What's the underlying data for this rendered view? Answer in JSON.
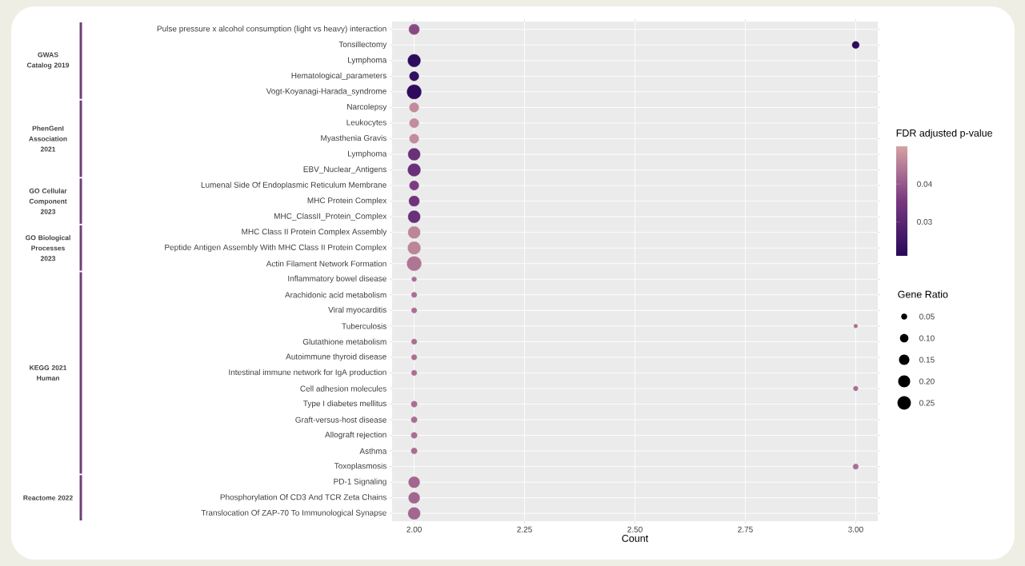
{
  "chart_data": {
    "type": "bubble",
    "orientation": "horizontal",
    "xlabel": "Count",
    "clabel": "FDR adjusted p-value",
    "legend_title": "Gene Ratio",
    "categories": [
      "Pulse pressure x alcohol consumption (light vs heavy) interaction",
      "Tonsillectomy",
      "Lymphoma",
      "Hematological_parameters",
      "Vogt-Koyanagi-Harada_syndrome",
      "Narcolepsy",
      "Leukocytes",
      "Myasthenia Gravis",
      "Lymphoma",
      "EBV_Nuclear_Antigens",
      "Lumenal Side Of Endoplasmic Reticulum Membrane",
      "MHC Protein Complex",
      "MHC_ClassII_Protein_Complex",
      "MHC Class II Protein Complex Assembly",
      "Peptide Antigen Assembly With MHC Class II Protein Complex",
      "Actin Filament Network Formation",
      "Inflammatory bowel disease",
      "Arachidonic acid metabolism",
      "Viral myocarditis",
      "Tuberculosis",
      "Glutathione metabolism",
      "Autoimmune thyroid disease",
      "Intestinal immune network for IgA production",
      "Cell adhesion molecules",
      "Type I diabetes mellitus",
      "Graft-versus-host disease",
      "Allograft rejection",
      "Asthma",
      "Toxoplasmosis",
      "PD-1 Signaling",
      "Phosphorylation Of CD3 And TCR Zeta Chains",
      "Translocation Of ZAP-70 To Immunological Synapse"
    ],
    "values": [
      2,
      3,
      2,
      2,
      2,
      2,
      2,
      2,
      2,
      2,
      2,
      2,
      2,
      2,
      2,
      2,
      2,
      2,
      2,
      3,
      2,
      2,
      2,
      3,
      2,
      2,
      2,
      2,
      3,
      2,
      2,
      2
    ],
    "sizes": [
      0.15,
      0.07,
      0.22,
      0.12,
      0.28,
      0.12,
      0.12,
      0.12,
      0.2,
      0.22,
      0.12,
      0.15,
      0.2,
      0.2,
      0.22,
      0.28,
      0.03,
      0.04,
      0.04,
      0.02,
      0.04,
      0.04,
      0.04,
      0.03,
      0.05,
      0.05,
      0.05,
      0.05,
      0.04,
      0.17,
      0.17,
      0.2
    ],
    "cvalues": [
      0.038,
      0.022,
      0.022,
      0.023,
      0.022,
      0.047,
      0.047,
      0.047,
      0.033,
      0.033,
      0.036,
      0.034,
      0.033,
      0.046,
      0.046,
      0.044,
      0.043,
      0.043,
      0.043,
      0.043,
      0.043,
      0.043,
      0.043,
      0.043,
      0.043,
      0.043,
      0.043,
      0.043,
      0.043,
      0.042,
      0.042,
      0.042
    ],
    "xlim": [
      1.95,
      3.05
    ],
    "xticks": [
      {
        "value": 2,
        "label": "2.00"
      },
      {
        "value": 2.25,
        "label": "2.25"
      },
      {
        "value": 2.5,
        "label": "2.50"
      },
      {
        "value": 2.75,
        "label": "2.75"
      },
      {
        "value": 3,
        "label": "3.00"
      }
    ],
    "clim": [
      0.021,
      0.05
    ],
    "cticks": [
      0.03,
      0.04
    ],
    "size_legend": [
      {
        "value": 0.05,
        "label": "0.05"
      },
      {
        "value": 0.1,
        "label": "0.10"
      },
      {
        "value": 0.15,
        "label": "0.15"
      },
      {
        "value": 0.2,
        "label": "0.20"
      },
      {
        "value": 0.25,
        "label": "0.25"
      }
    ],
    "grid": true,
    "annotations": [
      "GWAS Catalog 2019",
      "PhenGenI Association 2021",
      "GO Cellular Component 2023",
      "GO Biological Processes 2023",
      "KEGG 2021 Human",
      "Reactome 2022"
    ]
  }
}
